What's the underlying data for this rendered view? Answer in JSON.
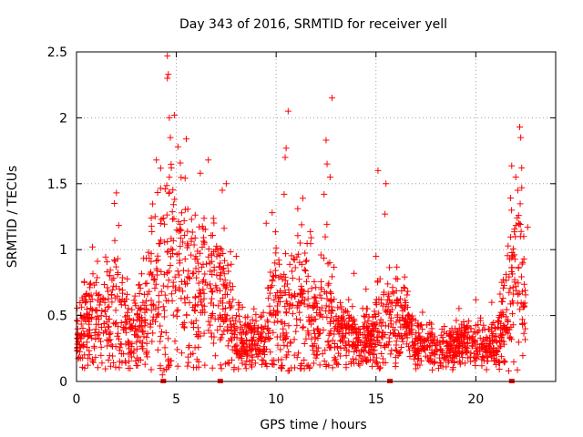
{
  "chart_data": {
    "type": "scatter",
    "title": "Day 343 of 2016, SRMTID for receiver yell",
    "xlabel": "GPS time / hours",
    "ylabel": "SRMTID / TECUs",
    "xlim": [
      0,
      24
    ],
    "ylim": [
      0,
      2.5
    ],
    "x_ticks": [
      0,
      5,
      10,
      15,
      20
    ],
    "x_tick_labels": [
      "0",
      "5",
      "10",
      "15",
      "20"
    ],
    "y_ticks": [
      0,
      0.5,
      1,
      1.5,
      2,
      2.5
    ],
    "y_tick_labels": [
      "0",
      "0.5",
      "1",
      "1.5",
      "2",
      "2.5"
    ],
    "grid": true,
    "marker_color": "#ff0000",
    "marker": "plus",
    "envelope": {
      "description": "approximate per-hour level of the scattered samples",
      "hour": [
        0,
        0.5,
        1,
        1.5,
        2,
        2.5,
        3,
        3.5,
        4,
        4.5,
        5,
        5.5,
        6,
        6.5,
        7,
        7.5,
        8,
        8.5,
        9,
        9.5,
        10,
        10.5,
        11,
        11.5,
        12,
        12.5,
        13,
        13.5,
        14,
        14.5,
        15,
        15.5,
        16,
        16.5,
        17,
        17.5,
        18,
        18.5,
        19,
        19.5,
        20,
        20.5,
        21,
        21.5,
        22,
        22.5
      ],
      "center": [
        0.35,
        0.45,
        0.45,
        0.5,
        0.55,
        0.45,
        0.35,
        0.55,
        0.75,
        0.75,
        0.8,
        0.75,
        0.7,
        0.65,
        0.7,
        0.55,
        0.35,
        0.3,
        0.3,
        0.35,
        0.6,
        0.55,
        0.6,
        0.55,
        0.45,
        0.55,
        0.4,
        0.35,
        0.3,
        0.3,
        0.4,
        0.45,
        0.5,
        0.45,
        0.25,
        0.3,
        0.25,
        0.25,
        0.3,
        0.3,
        0.3,
        0.25,
        0.3,
        0.5,
        0.9,
        0.6
      ],
      "spread": [
        0.12,
        0.15,
        0.18,
        0.22,
        0.28,
        0.2,
        0.15,
        0.25,
        0.35,
        0.4,
        0.4,
        0.35,
        0.3,
        0.3,
        0.3,
        0.25,
        0.15,
        0.1,
        0.1,
        0.15,
        0.3,
        0.3,
        0.3,
        0.3,
        0.2,
        0.3,
        0.15,
        0.12,
        0.1,
        0.1,
        0.15,
        0.2,
        0.2,
        0.15,
        0.08,
        0.1,
        0.08,
        0.08,
        0.1,
        0.1,
        0.1,
        0.08,
        0.1,
        0.2,
        0.4,
        0.2
      ]
    },
    "peaks": [
      {
        "x": 4.55,
        "y": 2.47
      },
      {
        "x": 4.6,
        "y": 2.33
      },
      {
        "x": 4.55,
        "y": 2.3
      },
      {
        "x": 4.9,
        "y": 2.02
      },
      {
        "x": 4.65,
        "y": 2.0
      },
      {
        "x": 4.7,
        "y": 1.85
      },
      {
        "x": 5.5,
        "y": 1.84
      },
      {
        "x": 4.0,
        "y": 1.68
      },
      {
        "x": 6.6,
        "y": 1.68
      },
      {
        "x": 4.75,
        "y": 1.62
      },
      {
        "x": 6.2,
        "y": 1.58
      },
      {
        "x": 7.5,
        "y": 1.5
      },
      {
        "x": 2.0,
        "y": 1.43
      },
      {
        "x": 1.9,
        "y": 1.35
      },
      {
        "x": 7.3,
        "y": 1.45
      },
      {
        "x": 10.6,
        "y": 2.05
      },
      {
        "x": 10.5,
        "y": 1.77
      },
      {
        "x": 10.45,
        "y": 1.7
      },
      {
        "x": 10.4,
        "y": 1.42
      },
      {
        "x": 12.8,
        "y": 2.15
      },
      {
        "x": 12.5,
        "y": 1.83
      },
      {
        "x": 12.55,
        "y": 1.65
      },
      {
        "x": 12.7,
        "y": 1.55
      },
      {
        "x": 12.4,
        "y": 1.42
      },
      {
        "x": 15.1,
        "y": 1.6
      },
      {
        "x": 15.5,
        "y": 1.5
      },
      {
        "x": 15.45,
        "y": 1.27
      },
      {
        "x": 9.5,
        "y": 1.2
      },
      {
        "x": 9.8,
        "y": 1.28
      },
      {
        "x": 13.9,
        "y": 0.82
      },
      {
        "x": 15.0,
        "y": 0.95
      },
      {
        "x": 20.0,
        "y": 0.62
      },
      {
        "x": 20.8,
        "y": 0.6
      },
      {
        "x": 22.0,
        "y": 1.55
      },
      {
        "x": 22.1,
        "y": 1.45
      },
      {
        "x": 22.2,
        "y": 1.93
      },
      {
        "x": 22.25,
        "y": 1.85
      },
      {
        "x": 22.3,
        "y": 1.62
      },
      {
        "x": 22.15,
        "y": 1.2
      },
      {
        "x": 22.4,
        "y": 1.1
      },
      {
        "x": 22.6,
        "y": 1.17
      },
      {
        "x": 0.8,
        "y": 1.02
      },
      {
        "x": 3.6,
        "y": 0.98
      },
      {
        "x": 8.0,
        "y": 0.95
      },
      {
        "x": 11.2,
        "y": 1.05
      },
      {
        "x": 14.5,
        "y": 0.7
      },
      {
        "x": 16.0,
        "y": 0.78
      },
      {
        "x": 4.2,
        "y": 0.1
      },
      {
        "x": 4.3,
        "y": 0.05
      },
      {
        "x": 2.6,
        "y": 0.1
      },
      {
        "x": 10.25,
        "y": 0.1
      }
    ],
    "zero_markers": [
      4.35,
      7.2,
      15.7,
      21.8
    ],
    "samples_per_hour": 95,
    "random_seed": 343
  }
}
